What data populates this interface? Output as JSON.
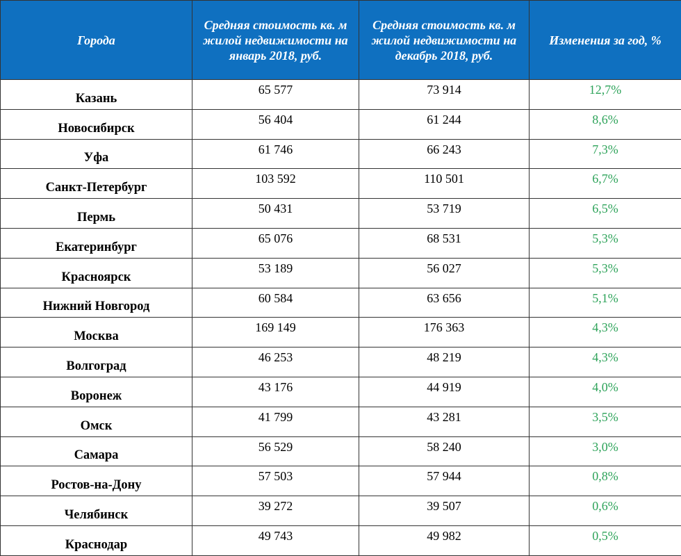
{
  "header": {
    "city": "Города",
    "jan": "Средняя стоимость кв. м жилой недвижимости на январь 2018, руб.",
    "dec": "Средняя стоимость кв. м жилой недвижимости на декабрь 2018, руб.",
    "change": "Изменения за год, %"
  },
  "colors": {
    "header_bg": "#0f70c0",
    "positive_change": "#2ea35a"
  },
  "rows": [
    {
      "city": "Казань",
      "jan": "65 577",
      "dec": "73 914",
      "change": "12,7%"
    },
    {
      "city": "Новосибирск",
      "jan": "56 404",
      "dec": "61 244",
      "change": "8,6%"
    },
    {
      "city": "Уфа",
      "jan": "61 746",
      "dec": "66 243",
      "change": "7,3%"
    },
    {
      "city": "Санкт-Петербург",
      "jan": "103 592",
      "dec": "110 501",
      "change": "6,7%"
    },
    {
      "city": "Пермь",
      "jan": "50 431",
      "dec": "53 719",
      "change": "6,5%"
    },
    {
      "city": "Екатеринбург",
      "jan": "65 076",
      "dec": "68 531",
      "change": "5,3%"
    },
    {
      "city": "Красноярск",
      "jan": "53 189",
      "dec": "56 027",
      "change": "5,3%"
    },
    {
      "city": "Нижний Новгород",
      "jan": "60 584",
      "dec": "63 656",
      "change": "5,1%"
    },
    {
      "city": "Москва",
      "jan": "169 149",
      "dec": "176 363",
      "change": "4,3%"
    },
    {
      "city": "Волгоград",
      "jan": "46 253",
      "dec": "48 219",
      "change": "4,3%"
    },
    {
      "city": "Воронеж",
      "jan": "43 176",
      "dec": "44 919",
      "change": "4,0%"
    },
    {
      "city": "Омск",
      "jan": "41 799",
      "dec": "43 281",
      "change": "3,5%"
    },
    {
      "city": "Самара",
      "jan": "56 529",
      "dec": "58 240",
      "change": "3,0%"
    },
    {
      "city": "Ростов-на-Дону",
      "jan": "57 503",
      "dec": "57 944",
      "change": "0,8%"
    },
    {
      "city": "Челябинск",
      "jan": "39 272",
      "dec": "39 507",
      "change": "0,6%"
    },
    {
      "city": "Краснодар",
      "jan": "49 743",
      "dec": "49 982",
      "change": "0,5%"
    }
  ]
}
